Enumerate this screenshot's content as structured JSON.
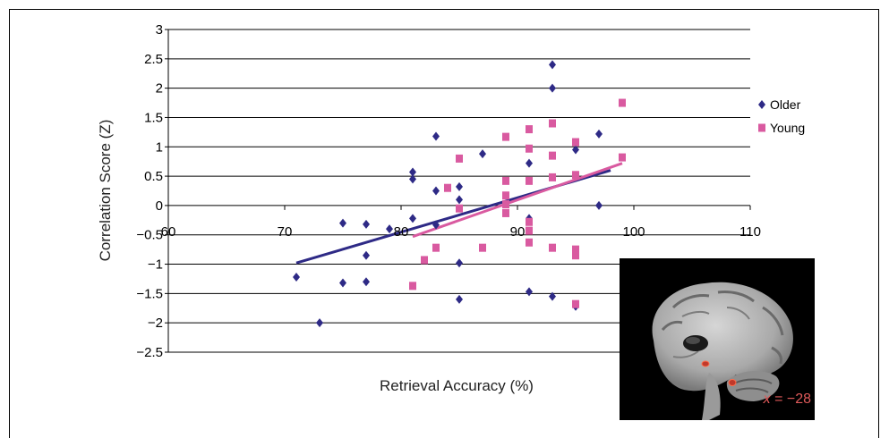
{
  "chart_data": {
    "type": "scatter",
    "xlabel": "Retrieval Accuracy (%)",
    "ylabel": "Correlation Score (Z)",
    "xlim": [
      60,
      110
    ],
    "ylim": [
      -2.5,
      3
    ],
    "x_ticks": [
      60,
      70,
      80,
      90,
      100,
      110
    ],
    "y_ticks": [
      -2.5,
      -2,
      -1.5,
      -1,
      -0.5,
      0,
      0.5,
      1,
      1.5,
      2,
      2.5,
      3
    ],
    "x_tick_labels": [
      "60",
      "70",
      "80",
      "90",
      "100",
      "110"
    ],
    "y_tick_labels": [
      "−2.5",
      "−2",
      "−1.5",
      "−1",
      "−0.5",
      "0",
      "0.5",
      "1",
      "1.5",
      "2",
      "2.5",
      "3"
    ],
    "grid": "horizontal",
    "legend_position": "right",
    "series": [
      {
        "name": "Older",
        "color": "#2e2a86",
        "marker": "diamond",
        "points": [
          [
            71,
            -1.22
          ],
          [
            73,
            -2.0
          ],
          [
            75,
            -0.3
          ],
          [
            75,
            -1.32
          ],
          [
            77,
            -0.32
          ],
          [
            77,
            -0.85
          ],
          [
            77,
            -1.3
          ],
          [
            79,
            -0.4
          ],
          [
            81,
            0.57
          ],
          [
            81,
            0.45
          ],
          [
            81,
            -0.22
          ],
          [
            83,
            1.18
          ],
          [
            83,
            0.25
          ],
          [
            83,
            -0.33
          ],
          [
            85,
            0.32
          ],
          [
            85,
            0.1
          ],
          [
            85,
            -0.98
          ],
          [
            85,
            -1.6
          ],
          [
            87,
            0.88
          ],
          [
            91,
            0.72
          ],
          [
            91,
            -0.22
          ],
          [
            91,
            -1.47
          ],
          [
            93,
            2.4
          ],
          [
            93,
            2.0
          ],
          [
            93,
            -1.55
          ],
          [
            95,
            0.95
          ],
          [
            95,
            -1.72
          ],
          [
            97,
            1.22
          ],
          [
            97,
            0.0
          ]
        ],
        "trendline": [
          [
            71,
            -0.98
          ],
          [
            98,
            0.6
          ]
        ]
      },
      {
        "name": "Young",
        "color": "#d95aa0",
        "marker": "square",
        "points": [
          [
            81,
            -1.37
          ],
          [
            82,
            -0.93
          ],
          [
            83,
            -0.72
          ],
          [
            84,
            0.3
          ],
          [
            85,
            0.8
          ],
          [
            85,
            -0.05
          ],
          [
            87,
            -0.72
          ],
          [
            89,
            1.17
          ],
          [
            89,
            0.42
          ],
          [
            89,
            0.17
          ],
          [
            89,
            0.02
          ],
          [
            89,
            -0.13
          ],
          [
            91,
            1.3
          ],
          [
            91,
            0.97
          ],
          [
            91,
            0.42
          ],
          [
            91,
            -0.28
          ],
          [
            91,
            -0.43
          ],
          [
            91,
            -0.63
          ],
          [
            93,
            1.4
          ],
          [
            93,
            0.85
          ],
          [
            93,
            0.48
          ],
          [
            93,
            -0.72
          ],
          [
            95,
            1.08
          ],
          [
            95,
            0.52
          ],
          [
            95,
            -0.75
          ],
          [
            95,
            -0.85
          ],
          [
            95,
            -1.68
          ],
          [
            99,
            1.75
          ],
          [
            99,
            0.82
          ]
        ],
        "trendline": [
          [
            81,
            -0.53
          ],
          [
            99,
            0.72
          ]
        ]
      }
    ]
  },
  "inset": {
    "description_label": "x = −28",
    "label_var": "x",
    "label_value": " = −28"
  }
}
